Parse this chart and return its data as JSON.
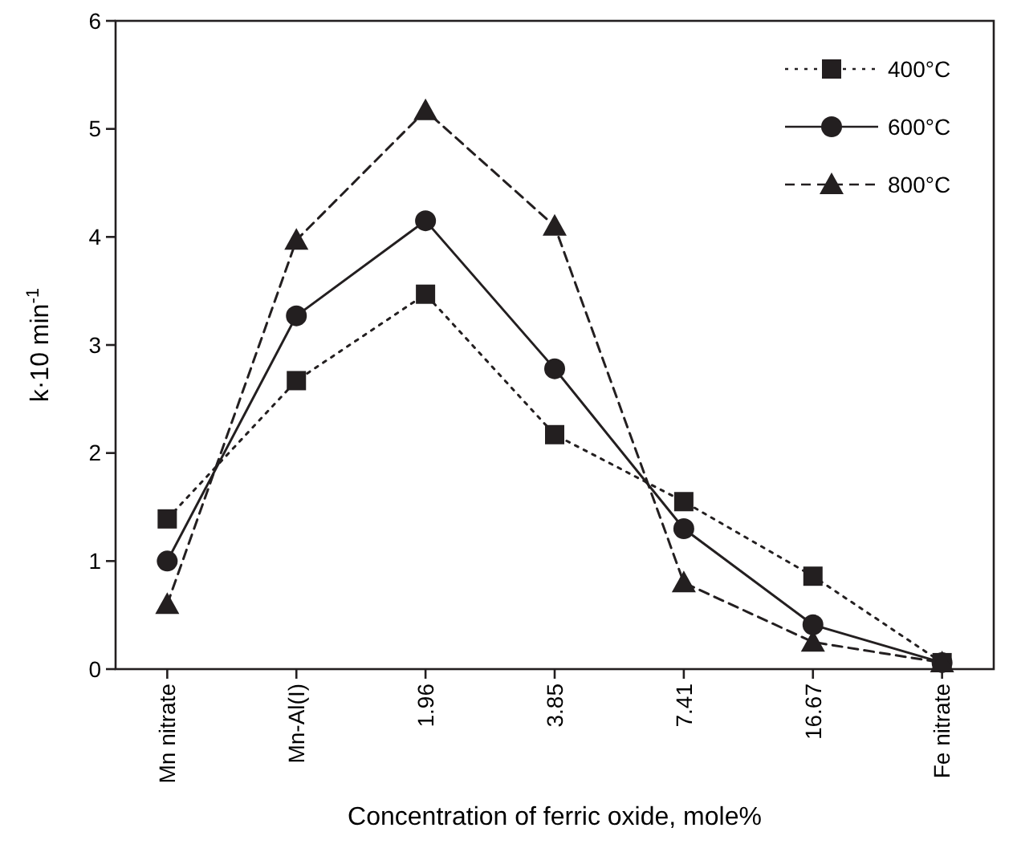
{
  "chart_data": {
    "type": "line",
    "xlabel": "Concentration of ferric oxide, mole%",
    "ylabel": "k·10 min$^{-1}$",
    "categories": [
      "Mn nitrate",
      "Mn-Al(I)",
      "1.96",
      "3.85",
      "7.41",
      "16.67",
      "Fe nitrate"
    ],
    "ylim": [
      0,
      6
    ],
    "yticks": [
      0,
      1,
      2,
      3,
      4,
      5,
      6
    ],
    "grid": false,
    "legend": "top right",
    "series": [
      {
        "name": "400°C",
        "color": "#231f20",
        "marker": "square",
        "line_style": "dotted",
        "values": [
          1.39,
          2.67,
          3.47,
          2.17,
          1.55,
          0.86,
          0.06
        ]
      },
      {
        "name": "600°C",
        "color": "#231f20",
        "marker": "circle",
        "line_style": "solid",
        "values": [
          1.0,
          3.27,
          4.15,
          2.78,
          1.3,
          0.41,
          0.06
        ]
      },
      {
        "name": "800°C",
        "color": "#231f20",
        "marker": "triangle",
        "line_style": "dashed",
        "values": [
          0.6,
          3.97,
          5.17,
          4.1,
          0.8,
          0.25,
          0.06
        ]
      }
    ]
  }
}
